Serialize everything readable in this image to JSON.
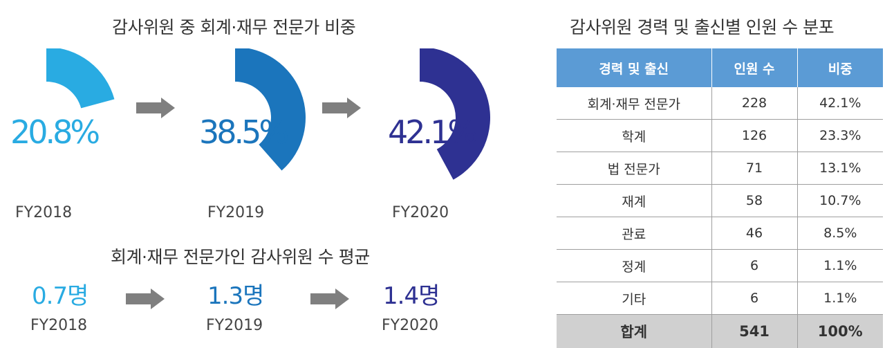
{
  "left_title": "감사위원 중 회계·재무 전문가 비중",
  "avg_title": "회계·재무 전문가인 감사위원 수 평균",
  "right_title": "감사위원 경력 및 출신별 인원 수 분포",
  "colors": {
    "fy2018": "#29abe2",
    "fy2019": "#1b75bc",
    "fy2020": "#2e3192",
    "arrow": "#7f7f7f",
    "header": "#5b9bd5",
    "total": "#d0d0d0"
  },
  "chart_data": [
    {
      "type": "pie",
      "categories": [
        "FY2018",
        "FY2019",
        "FY2020"
      ],
      "values": [
        20.8,
        38.5,
        42.1
      ],
      "labels": [
        "20.8%",
        "38.5%",
        "42.1%"
      ],
      "title": "감사위원 중 회계·재무 전문가 비중"
    },
    {
      "type": "table",
      "categories": [
        "FY2018",
        "FY2019",
        "FY2020"
      ],
      "values": [
        0.7,
        1.3,
        1.4
      ],
      "labels": [
        "0.7명",
        "1.3명",
        "1.4명"
      ],
      "title": "회계·재무 전문가인 감사위원 수 평균"
    },
    {
      "type": "table",
      "title": "감사위원 경력 및 출신별 인원 수 분포",
      "columns": [
        "경력 및 출신",
        "인원 수",
        "비중"
      ],
      "rows": [
        [
          "회계·재무 전문가",
          "228",
          "42.1%"
        ],
        [
          "학계",
          "126",
          "23.3%"
        ],
        [
          "법 전문가",
          "71",
          "13.1%"
        ],
        [
          "재계",
          "58",
          "10.7%"
        ],
        [
          "관료",
          "46",
          "8.5%"
        ],
        [
          "정계",
          "6",
          "1.1%"
        ],
        [
          "기타",
          "6",
          "1.1%"
        ]
      ],
      "total": [
        "합계",
        "541",
        "100%"
      ]
    }
  ]
}
